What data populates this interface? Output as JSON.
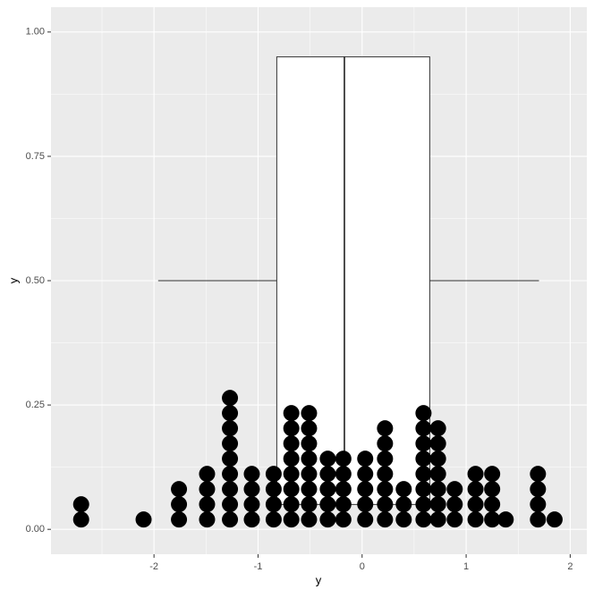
{
  "chart_data": {
    "type": "dotplot_box",
    "x_label": "y",
    "y_label": "y",
    "xlim": [
      -2.99,
      2.16
    ],
    "ylim": [
      -0.05,
      1.05
    ],
    "xticks": [
      -2,
      -1,
      0,
      1,
      2
    ],
    "yticks": [
      {
        "value": 0,
        "label": "0.00"
      },
      {
        "value": 0.25,
        "label": "0.25"
      },
      {
        "value": 0.5,
        "label": "0.50"
      },
      {
        "value": 0.75,
        "label": "0.75"
      },
      {
        "value": 1,
        "label": "1.00"
      }
    ],
    "grid": true,
    "boxplot": {
      "whisker_low": -1.96,
      "q1": -0.82,
      "median": -0.17,
      "q3": 0.65,
      "whisker_high": 1.7,
      "ymin": 0.05,
      "ymax": 0.95,
      "ymid": 0.5
    },
    "dots": {
      "color": "#000000",
      "x": [
        -2.7,
        -2.1,
        -1.76,
        -1.49,
        -1.27,
        -1.06,
        -0.85,
        -0.68,
        -0.51,
        -0.33,
        -0.18,
        0.03,
        0.22,
        0.4,
        0.59,
        0.73,
        0.89,
        1.09,
        1.25,
        1.38,
        1.69,
        1.85
      ],
      "counts": [
        2,
        1,
        3,
        4,
        9,
        4,
        4,
        8,
        8,
        5,
        5,
        5,
        7,
        3,
        8,
        7,
        3,
        4,
        4,
        1,
        4,
        1
      ]
    }
  }
}
